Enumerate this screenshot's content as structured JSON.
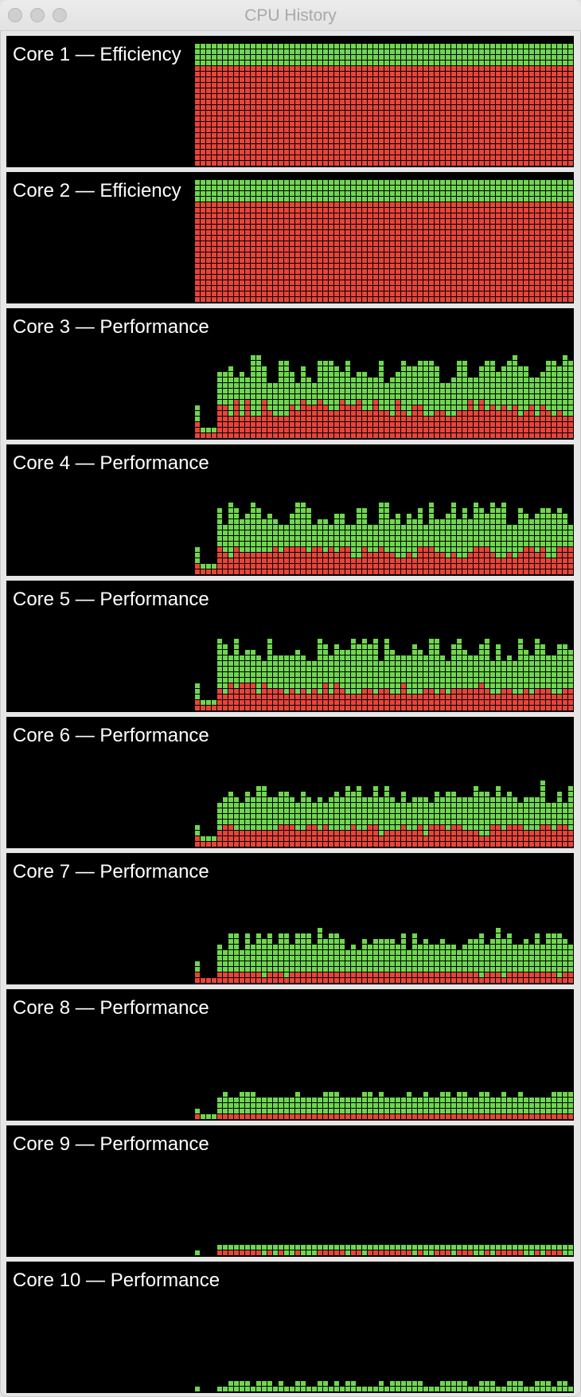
{
  "window": {
    "title": "CPU History"
  },
  "legend_colors": {
    "system": "#e8443a",
    "user": "#6fd64e",
    "background": "#000000"
  },
  "cores": [
    {
      "label": "Core 1 — Efficiency",
      "system": [
        0,
        0,
        0,
        0,
        0,
        0,
        0,
        0,
        0,
        0,
        0,
        0,
        0,
        0,
        0,
        0,
        0,
        0,
        0,
        0,
        0,
        0,
        0,
        0,
        0,
        0,
        80,
        80,
        80,
        80,
        80,
        80,
        80,
        80,
        80,
        80,
        80,
        80,
        80,
        80,
        80,
        80,
        80,
        80,
        80,
        80,
        80,
        80,
        80,
        80,
        80,
        80,
        80,
        80,
        80,
        80,
        80,
        80,
        80,
        80,
        80,
        80,
        80,
        80,
        80,
        80,
        80,
        80,
        80,
        80,
        80,
        80,
        80,
        80,
        80,
        80,
        80,
        80,
        80,
        80,
        80,
        80,
        80,
        80,
        80,
        80,
        80,
        80,
        80,
        80,
        80,
        80,
        80,
        80
      ],
      "total": [
        0,
        0,
        0,
        0,
        0,
        0,
        0,
        0,
        0,
        0,
        0,
        0,
        0,
        0,
        0,
        0,
        0,
        0,
        0,
        0,
        0,
        0,
        0,
        0,
        0,
        0,
        100,
        100,
        100,
        100,
        100,
        100,
        100,
        100,
        100,
        100,
        100,
        100,
        100,
        100,
        100,
        100,
        100,
        100,
        100,
        100,
        100,
        100,
        100,
        100,
        100,
        100,
        100,
        100,
        100,
        100,
        100,
        100,
        100,
        100,
        100,
        100,
        100,
        100,
        100,
        100,
        100,
        100,
        100,
        100,
        100,
        100,
        100,
        100,
        100,
        100,
        100,
        100,
        100,
        100,
        100,
        100,
        100,
        100,
        100,
        100,
        100,
        100,
        100,
        100,
        100,
        100,
        100,
        100
      ]
    },
    {
      "label": "Core 2 — Efficiency",
      "system": [
        0,
        0,
        0,
        0,
        0,
        0,
        0,
        0,
        0,
        0,
        0,
        0,
        0,
        0,
        0,
        0,
        0,
        0,
        0,
        0,
        0,
        0,
        0,
        0,
        0,
        0,
        80,
        80,
        80,
        80,
        80,
        80,
        80,
        80,
        80,
        80,
        80,
        80,
        80,
        80,
        80,
        80,
        80,
        80,
        80,
        80,
        80,
        80,
        80,
        80,
        80,
        80,
        80,
        80,
        80,
        80,
        80,
        80,
        80,
        80,
        80,
        80,
        80,
        80,
        80,
        80,
        80,
        80,
        80,
        80,
        80,
        80,
        80,
        80,
        80,
        80,
        80,
        80,
        80,
        80,
        80,
        80,
        80,
        80,
        80,
        80,
        80,
        80,
        80,
        80,
        80,
        80,
        80,
        80
      ],
      "total": [
        0,
        0,
        0,
        0,
        0,
        0,
        0,
        0,
        0,
        0,
        0,
        0,
        0,
        0,
        0,
        0,
        0,
        0,
        0,
        0,
        0,
        0,
        0,
        0,
        0,
        0,
        100,
        100,
        100,
        100,
        100,
        100,
        100,
        100,
        100,
        100,
        100,
        100,
        100,
        100,
        100,
        100,
        100,
        100,
        100,
        100,
        100,
        100,
        100,
        100,
        100,
        100,
        100,
        100,
        100,
        100,
        100,
        100,
        100,
        100,
        100,
        100,
        100,
        100,
        100,
        100,
        100,
        100,
        100,
        100,
        100,
        100,
        100,
        100,
        100,
        100,
        100,
        100,
        100,
        100,
        100,
        100,
        100,
        100,
        100,
        100,
        100,
        100,
        100,
        100,
        100,
        100,
        100,
        100
      ]
    },
    {
      "label": "Core 3 — Performance",
      "system": [],
      "total": []
    },
    {
      "label": "Core 4 — Performance",
      "system": [],
      "total": []
    },
    {
      "label": "Core 5 — Performance",
      "system": [],
      "total": []
    },
    {
      "label": "Core 6 — Performance",
      "system": [],
      "total": []
    },
    {
      "label": "Core 7 — Performance",
      "system": [],
      "total": []
    },
    {
      "label": "Core 8 — Performance",
      "system": [],
      "total": []
    },
    {
      "label": "Core 9 — Performance",
      "system": [],
      "total": []
    },
    {
      "label": "Core 10 — Performance",
      "system": [],
      "total": []
    }
  ]
}
